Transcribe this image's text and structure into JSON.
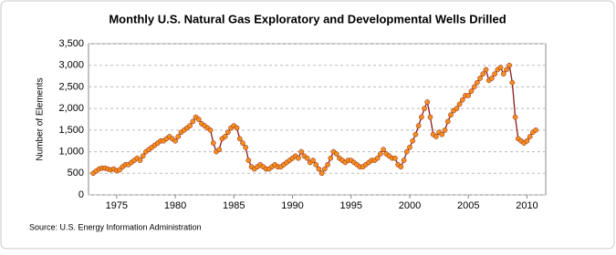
{
  "chart_data": {
    "type": "line",
    "title": "Monthly U.S. Natural Gas Exploratory and Developmental Wells Drilled",
    "y_label": "Number of Elements",
    "source": "Source: U.S. Energy Information Administration",
    "xlim": [
      1972.6,
      2011.6
    ],
    "xticks": [
      1975,
      1980,
      1985,
      1990,
      1995,
      2000,
      2005,
      2010
    ],
    "ylim": [
      0,
      3500
    ],
    "yticks": [
      0,
      500,
      {
        "value": 1000,
        "label": "1,000"
      },
      {
        "value": 1500,
        "label": "1,500"
      },
      {
        "value": 2000,
        "label": "2,000"
      },
      {
        "value": 2500,
        "label": "2,500"
      },
      {
        "value": 3000,
        "label": "3,000"
      },
      {
        "value": 3500,
        "label": "3,500"
      }
    ],
    "grid": true,
    "series": [
      {
        "color": "#8b1a1a",
        "marker_color": "#f5901e",
        "x": [
          1973,
          1973.25,
          1973.5,
          1973.75,
          1974,
          1974.25,
          1974.5,
          1974.75,
          1975,
          1975.25,
          1975.5,
          1975.75,
          1976,
          1976.25,
          1976.5,
          1976.75,
          1977,
          1977.25,
          1977.5,
          1977.75,
          1978,
          1978.25,
          1978.5,
          1978.75,
          1979,
          1979.25,
          1979.5,
          1979.75,
          1980,
          1980.25,
          1980.5,
          1980.75,
          1981,
          1981.25,
          1981.5,
          1981.75,
          1982,
          1982.25,
          1982.5,
          1982.75,
          1983,
          1983.25,
          1983.5,
          1983.75,
          1984,
          1984.25,
          1984.5,
          1984.75,
          1985,
          1985.25,
          1985.5,
          1985.75,
          1986,
          1986.25,
          1986.5,
          1986.75,
          1987,
          1987.25,
          1987.5,
          1987.75,
          1988,
          1988.25,
          1988.5,
          1988.75,
          1989,
          1989.25,
          1989.5,
          1989.75,
          1990,
          1990.25,
          1990.5,
          1990.75,
          1991,
          1991.25,
          1991.5,
          1991.75,
          1992,
          1992.25,
          1992.5,
          1992.75,
          1993,
          1993.25,
          1993.5,
          1993.75,
          1994,
          1994.25,
          1994.5,
          1994.75,
          1995,
          1995.25,
          1995.5,
          1995.75,
          1996,
          1996.25,
          1996.5,
          1996.75,
          1997,
          1997.25,
          1997.5,
          1997.75,
          1998,
          1998.25,
          1998.5,
          1998.75,
          1999,
          1999.25,
          1999.5,
          1999.75,
          2000,
          2000.25,
          2000.5,
          2000.75,
          2001,
          2001.25,
          2001.5,
          2001.75,
          2002,
          2002.25,
          2002.5,
          2002.75,
          2003,
          2003.25,
          2003.5,
          2003.75,
          2004,
          2004.25,
          2004.5,
          2004.75,
          2005,
          2005.25,
          2005.5,
          2005.75,
          2006,
          2006.25,
          2006.5,
          2006.75,
          2007,
          2007.25,
          2007.5,
          2007.75,
          2008,
          2008.25,
          2008.5,
          2008.75,
          2009,
          2009.25,
          2009.5,
          2009.75,
          2010,
          2010.25,
          2010.5,
          2010.75
        ],
        "values": [
          500,
          550,
          600,
          620,
          620,
          600,
          580,
          600,
          560,
          580,
          650,
          700,
          700,
          750,
          800,
          850,
          800,
          900,
          1000,
          1050,
          1100,
          1150,
          1200,
          1250,
          1250,
          1300,
          1350,
          1300,
          1250,
          1350,
          1450,
          1500,
          1550,
          1600,
          1700,
          1800,
          1750,
          1650,
          1600,
          1550,
          1500,
          1200,
          1000,
          1050,
          1300,
          1350,
          1450,
          1550,
          1600,
          1550,
          1300,
          1200,
          1100,
          800,
          650,
          600,
          650,
          700,
          650,
          600,
          600,
          650,
          700,
          650,
          650,
          700,
          750,
          800,
          850,
          900,
          850,
          1000,
          900,
          850,
          750,
          800,
          700,
          600,
          500,
          600,
          700,
          850,
          1000,
          950,
          850,
          800,
          750,
          800,
          800,
          750,
          700,
          650,
          650,
          700,
          750,
          800,
          800,
          850,
          950,
          1050,
          950,
          900,
          850,
          850,
          700,
          650,
          800,
          1000,
          1100,
          1250,
          1400,
          1600,
          1800,
          2000,
          2150,
          1800,
          1400,
          1350,
          1450,
          1400,
          1500,
          1700,
          1850,
          1950,
          2000,
          2100,
          2200,
          2300,
          2300,
          2400,
          2500,
          2600,
          2700,
          2800,
          2900,
          2650,
          2700,
          2800,
          2900,
          2950,
          2800,
          2900,
          3000,
          2600,
          1800,
          1300,
          1250,
          1200,
          1250,
          1350,
          1450,
          1500
        ]
      }
    ]
  }
}
